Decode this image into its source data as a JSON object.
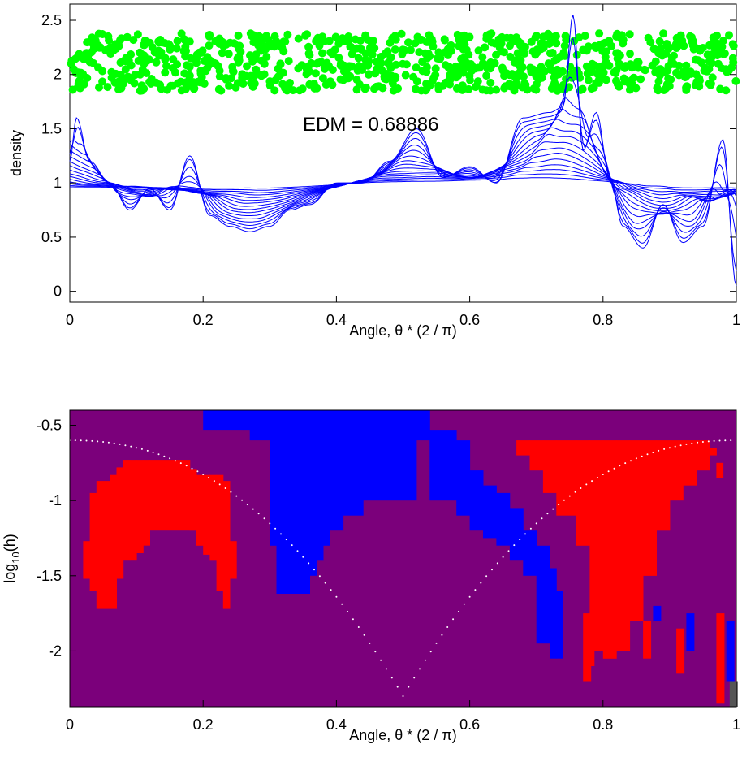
{
  "chart_data": [
    {
      "type": "line",
      "title": "",
      "xlabel": "Angle, θ * (2 / π)",
      "ylabel": "density",
      "xlim": [
        0,
        1
      ],
      "ylim": [
        -0.1,
        2.65
      ],
      "xticks": [
        "0",
        "0.2",
        "0.4",
        "0.6",
        "0.8",
        "1"
      ],
      "yticks": [
        "0",
        "0.5",
        "1",
        "1.5",
        "2",
        "2.5"
      ],
      "annotation": "EDM = 0.68886",
      "grid": false,
      "colors": {
        "curves": "#0000ff",
        "points": "#00ff00"
      },
      "points": {
        "y_range": [
          1.85,
          2.38
        ],
        "count_approx": 900,
        "x_range": [
          0,
          1
        ]
      },
      "base_curve": {
        "x": [
          0,
          0.01,
          0.03,
          0.06,
          0.09,
          0.12,
          0.15,
          0.18,
          0.21,
          0.24,
          0.27,
          0.3,
          0.33,
          0.36,
          0.4,
          0.44,
          0.48,
          0.52,
          0.56,
          0.6,
          0.64,
          0.68,
          0.72,
          0.74,
          0.755,
          0.77,
          0.79,
          0.81,
          0.83,
          0.86,
          0.89,
          0.92,
          0.95,
          0.98,
          1.0
        ],
        "y": [
          1.2,
          1.6,
          1.2,
          1.0,
          0.75,
          0.95,
          0.75,
          1.25,
          0.7,
          0.6,
          0.55,
          0.6,
          0.75,
          0.8,
          1.0,
          1.0,
          1.2,
          1.5,
          1.05,
          1.15,
          1.0,
          1.6,
          1.65,
          1.7,
          2.55,
          1.3,
          1.65,
          1.05,
          0.6,
          0.4,
          0.8,
          0.45,
          0.6,
          1.4,
          0.05
        ]
      },
      "num_curves": 16
    },
    {
      "type": "heatmap",
      "title": "",
      "xlabel": "Angle, θ * (2 / π)",
      "ylabel": "log10(h)",
      "xlim": [
        0,
        1
      ],
      "ylim": [
        -2.37,
        -0.4
      ],
      "xticks": [
        "0",
        "0.2",
        "0.4",
        "0.6",
        "0.8",
        "1"
      ],
      "yticks": [
        "-0.5",
        "-1",
        "-1.5",
        "-2"
      ],
      "colors": {
        "background": "#7b007b",
        "red": "#ff0000",
        "blue": "#0000ff",
        "gray": "#555555",
        "dotted": "#ffffff"
      },
      "regions": [
        {
          "color": "red",
          "cols": [
            [
              0.02,
              -1.27,
              -1.52
            ],
            [
              0.03,
              -0.95,
              -1.6
            ],
            [
              0.04,
              -0.87,
              -1.72
            ],
            [
              0.06,
              -0.83,
              -1.72
            ],
            [
              0.07,
              -0.78,
              -1.52
            ],
            [
              0.08,
              -0.73,
              -1.4
            ],
            [
              0.09,
              -0.73,
              -1.4
            ],
            [
              0.1,
              -0.73,
              -1.35
            ],
            [
              0.11,
              -0.73,
              -1.3
            ],
            [
              0.12,
              -0.73,
              -1.2
            ],
            [
              0.18,
              -0.79,
              -1.2
            ],
            [
              0.19,
              -0.83,
              -1.3
            ],
            [
              0.2,
              -0.83,
              -1.36
            ],
            [
              0.21,
              -0.83,
              -1.4
            ],
            [
              0.22,
              -0.83,
              -1.6
            ],
            [
              0.23,
              -0.87,
              -1.72
            ],
            [
              0.24,
              -1.27,
              -1.52
            ]
          ]
        },
        {
          "color": "blue",
          "cols": [
            [
              0.19,
              -0.4,
              -0.4
            ],
            [
              0.2,
              -0.4,
              -0.53
            ],
            [
              0.22,
              -0.4,
              -0.53
            ],
            [
              0.26,
              -0.4,
              -0.53
            ],
            [
              0.27,
              -0.4,
              -0.6
            ],
            [
              0.3,
              -0.4,
              -1.3
            ],
            [
              0.31,
              -0.4,
              -1.62
            ],
            [
              0.35,
              -0.4,
              -1.62
            ],
            [
              0.36,
              -0.4,
              -1.5
            ],
            [
              0.37,
              -0.4,
              -1.4
            ],
            [
              0.38,
              -0.4,
              -1.3
            ],
            [
              0.39,
              -0.4,
              -1.2
            ],
            [
              0.41,
              -0.4,
              -1.1
            ],
            [
              0.44,
              -0.4,
              -1.0
            ],
            [
              0.5,
              -0.4,
              -1.0
            ],
            [
              0.52,
              -0.4,
              -0.6
            ],
            [
              0.54,
              -0.53,
              -1.0
            ],
            [
              0.58,
              -0.6,
              -1.1
            ],
            [
              0.6,
              -0.8,
              -1.2
            ],
            [
              0.62,
              -0.9,
              -1.25
            ],
            [
              0.64,
              -0.95,
              -1.3
            ],
            [
              0.66,
              -1.05,
              -1.4
            ],
            [
              0.68,
              -1.2,
              -1.5
            ],
            [
              0.7,
              -1.3,
              -1.95
            ],
            [
              0.72,
              -1.45,
              -2.05
            ],
            [
              0.73,
              -1.6,
              -2.05
            ]
          ]
        },
        {
          "color": "red",
          "cols": [
            [
              0.67,
              -0.6,
              -0.7
            ],
            [
              0.69,
              -0.6,
              -0.8
            ],
            [
              0.71,
              -0.6,
              -0.95
            ],
            [
              0.73,
              -0.6,
              -1.1
            ],
            [
              0.76,
              -0.6,
              -1.3
            ],
            [
              0.78,
              -0.6,
              -2.0
            ],
            [
              0.8,
              -0.6,
              -2.05
            ],
            [
              0.82,
              -0.6,
              -2.0
            ],
            [
              0.84,
              -0.6,
              -1.8
            ],
            [
              0.86,
              -0.6,
              -1.5
            ],
            [
              0.88,
              -0.6,
              -1.2
            ],
            [
              0.9,
              -0.6,
              -1.0
            ],
            [
              0.92,
              -0.6,
              -0.9
            ],
            [
              0.94,
              -0.6,
              -0.8
            ],
            [
              0.96,
              -0.65,
              -0.7
            ],
            [
              0.97,
              -0.75,
              -0.85
            ]
          ]
        }
      ]
    }
  ]
}
